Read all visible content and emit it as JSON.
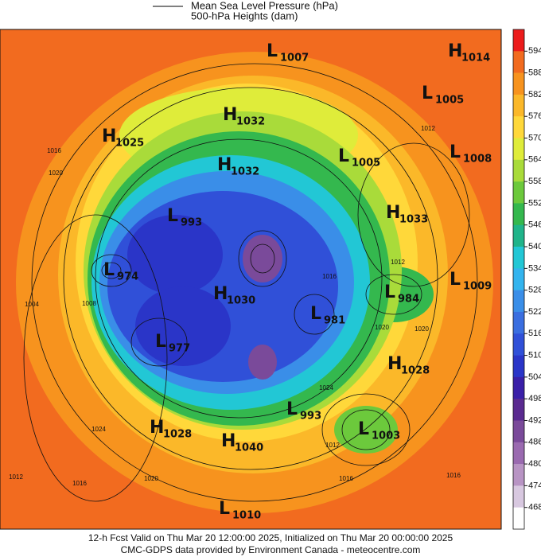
{
  "legend": {
    "line_label": "Mean Sea Level Pressure (hPa)",
    "fill_label": "500-hPa Heights (dam)"
  },
  "centers": [
    {
      "type": "L",
      "value": "1007"
    },
    {
      "type": "H",
      "value": "1014"
    },
    {
      "type": "L",
      "value": "1005"
    },
    {
      "type": "H",
      "value": "1032"
    },
    {
      "type": "H",
      "value": "1025"
    },
    {
      "type": "L",
      "value": "1008"
    },
    {
      "type": "L",
      "value": "1005"
    },
    {
      "type": "H",
      "value": "1032"
    },
    {
      "type": "H",
      "value": "1033"
    },
    {
      "type": "L",
      "value": "993"
    },
    {
      "type": "L",
      "value": "974"
    },
    {
      "type": "L",
      "value": "1009"
    },
    {
      "type": "H",
      "value": "1030"
    },
    {
      "type": "L",
      "value": "984"
    },
    {
      "type": "L",
      "value": "981"
    },
    {
      "type": "L",
      "value": "977"
    },
    {
      "type": "H",
      "value": "1028"
    },
    {
      "type": "L",
      "value": "993"
    },
    {
      "type": "L",
      "value": "1003"
    },
    {
      "type": "H",
      "value": "1028"
    },
    {
      "type": "H",
      "value": "1040"
    },
    {
      "type": "L",
      "value": "1010"
    }
  ],
  "contour_labels": [
    "1012",
    "1016",
    "1020",
    "1020",
    "1024",
    "1012",
    "1016",
    "1020",
    "1016",
    "1020",
    "1024",
    "1012",
    "1016",
    "1016",
    "1012",
    "1008",
    "1004"
  ],
  "colorbar": {
    "levels": [
      594,
      588,
      582,
      576,
      570,
      564,
      558,
      552,
      546,
      540,
      534,
      528,
      522,
      516,
      510,
      504,
      498,
      492,
      486,
      480,
      474,
      468
    ],
    "colors": [
      "#ec1c1c",
      "#f26b1f",
      "#f7931e",
      "#fbb829",
      "#ffd83a",
      "#dfec3a",
      "#a9db3a",
      "#6cc93c",
      "#34b84e",
      "#20b48a",
      "#22c7d5",
      "#33b4ee",
      "#3a8ee8",
      "#3a6ee0",
      "#3050d8",
      "#2a35c8",
      "#3a1fa8",
      "#5a2a90",
      "#7a4a9a",
      "#9a6ab0",
      "#b894c4",
      "#d8c8e0",
      "#ffffff"
    ]
  },
  "footer": [
    "12-h Fcst Valid on Thu Mar 20 12:00:00 2025, Initialized on Thu Mar 20 00:00:00 2025",
    "CMC-GDPS data provided by Environment Canada - meteocentre.com"
  ]
}
